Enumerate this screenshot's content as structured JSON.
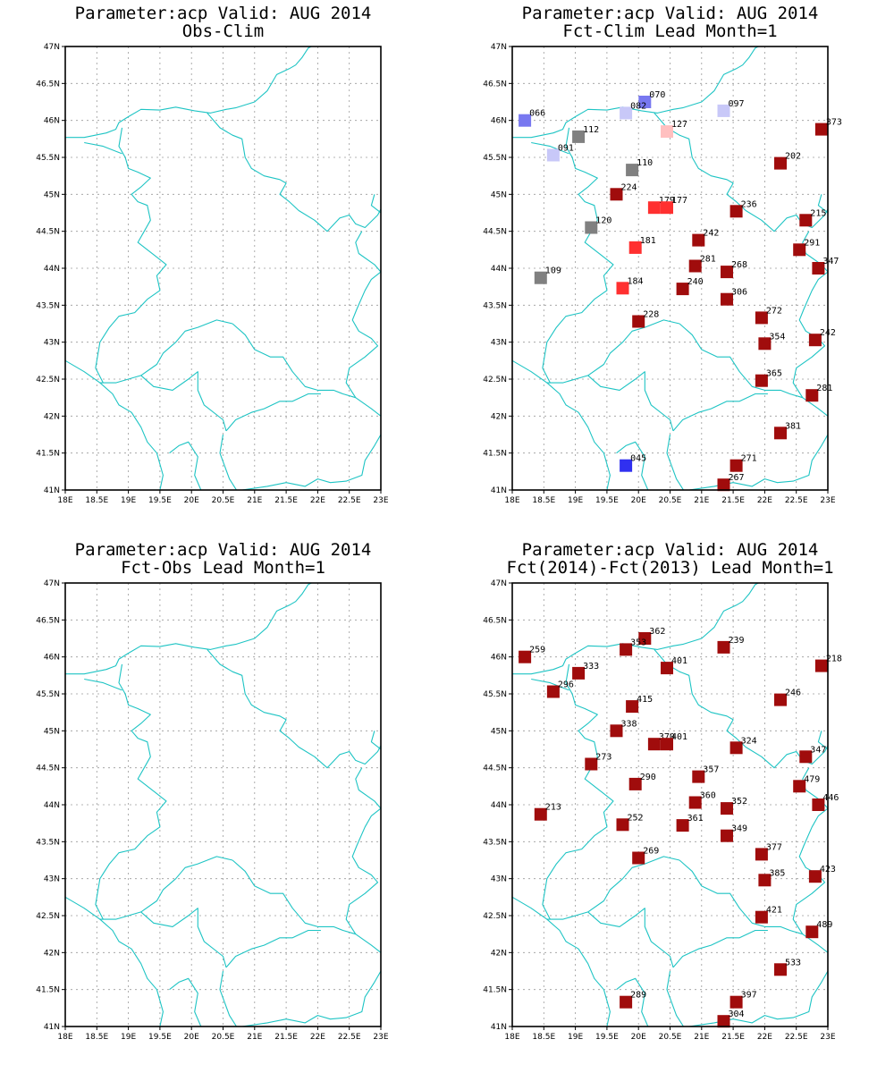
{
  "parameter_title": "Parameter:acp Valid: AUG 2014",
  "lon_ticks": [
    "18E",
    "18.5E",
    "19E",
    "19.5E",
    "20E",
    "20.5E",
    "21E",
    "21.5E",
    "22E",
    "22.5E",
    "23E"
  ],
  "lat_ticks": [
    "47N",
    "46.5N",
    "46N",
    "45.5N",
    "45N",
    "44.5N",
    "44N",
    "43.5N",
    "43N",
    "42.5N",
    "42N",
    "41.5N",
    "41N"
  ],
  "colors": {
    "border": "#1ec4c4",
    "dark_red": "#a00c0c",
    "red": "#ff3030",
    "pink": "#ffc0c0",
    "grey": "#808080",
    "light_blue": "#c8c8f8",
    "mid_blue": "#7878f0",
    "blue": "#3030f0"
  },
  "panels": [
    {
      "id": "obs-clim",
      "title": "Parameter:acp Valid: AUG 2014",
      "subtitle": "Obs-Clim",
      "stations": []
    },
    {
      "id": "fct-clim",
      "title": "Parameter:acp Valid: AUG 2014",
      "subtitle": "Fct-Clim Lead Month=1",
      "stations": [
        {
          "lon": 18.2,
          "lat": 46.0,
          "label": "066",
          "color": "mid_blue"
        },
        {
          "lon": 20.1,
          "lat": 46.25,
          "label": "070",
          "color": "mid_blue"
        },
        {
          "lon": 19.8,
          "lat": 46.1,
          "label": "082",
          "color": "light_blue"
        },
        {
          "lon": 21.35,
          "lat": 46.13,
          "label": "097",
          "color": "light_blue"
        },
        {
          "lon": 22.9,
          "lat": 45.88,
          "label": "373",
          "color": "dark_red"
        },
        {
          "lon": 19.05,
          "lat": 45.78,
          "label": "112",
          "color": "grey"
        },
        {
          "lon": 20.45,
          "lat": 45.85,
          "label": "127",
          "color": "pink"
        },
        {
          "lon": 18.65,
          "lat": 45.53,
          "label": "091",
          "color": "light_blue"
        },
        {
          "lon": 22.25,
          "lat": 45.42,
          "label": "202",
          "color": "dark_red"
        },
        {
          "lon": 19.9,
          "lat": 45.33,
          "label": "110",
          "color": "grey"
        },
        {
          "lon": 19.65,
          "lat": 45.0,
          "label": "224",
          "color": "dark_red"
        },
        {
          "lon": 20.25,
          "lat": 44.82,
          "label": "179",
          "color": "red"
        },
        {
          "lon": 20.45,
          "lat": 44.82,
          "label": "177",
          "color": "red"
        },
        {
          "lon": 21.55,
          "lat": 44.77,
          "label": "236",
          "color": "dark_red"
        },
        {
          "lon": 22.65,
          "lat": 44.65,
          "label": "215",
          "color": "dark_red"
        },
        {
          "lon": 19.25,
          "lat": 44.55,
          "label": "120",
          "color": "grey"
        },
        {
          "lon": 20.95,
          "lat": 44.38,
          "label": "242",
          "color": "dark_red"
        },
        {
          "lon": 19.95,
          "lat": 44.28,
          "label": "181",
          "color": "red"
        },
        {
          "lon": 22.55,
          "lat": 44.25,
          "label": "291",
          "color": "dark_red"
        },
        {
          "lon": 20.9,
          "lat": 44.03,
          "label": "281",
          "color": "dark_red"
        },
        {
          "lon": 21.4,
          "lat": 43.95,
          "label": "268",
          "color": "dark_red"
        },
        {
          "lon": 22.85,
          "lat": 44.0,
          "label": "347",
          "color": "dark_red"
        },
        {
          "lon": 18.45,
          "lat": 43.87,
          "label": "109",
          "color": "grey"
        },
        {
          "lon": 19.75,
          "lat": 43.73,
          "label": "184",
          "color": "red"
        },
        {
          "lon": 20.7,
          "lat": 43.72,
          "label": "240",
          "color": "dark_red"
        },
        {
          "lon": 21.4,
          "lat": 43.58,
          "label": "306",
          "color": "dark_red"
        },
        {
          "lon": 21.95,
          "lat": 43.33,
          "label": "272",
          "color": "dark_red"
        },
        {
          "lon": 20.0,
          "lat": 43.28,
          "label": "228",
          "color": "dark_red"
        },
        {
          "lon": 22.8,
          "lat": 43.03,
          "label": "242",
          "color": "dark_red"
        },
        {
          "lon": 22.0,
          "lat": 42.98,
          "label": "354",
          "color": "dark_red"
        },
        {
          "lon": 21.95,
          "lat": 42.48,
          "label": "365",
          "color": "dark_red"
        },
        {
          "lon": 22.75,
          "lat": 42.28,
          "label": "281",
          "color": "dark_red"
        },
        {
          "lon": 22.25,
          "lat": 41.77,
          "label": "381",
          "color": "dark_red"
        },
        {
          "lon": 19.8,
          "lat": 41.33,
          "label": "045",
          "color": "blue"
        },
        {
          "lon": 21.55,
          "lat": 41.33,
          "label": "271",
          "color": "dark_red"
        },
        {
          "lon": 21.35,
          "lat": 41.07,
          "label": "267",
          "color": "dark_red"
        }
      ]
    },
    {
      "id": "fct-obs",
      "title": "Parameter:acp Valid: AUG 2014",
      "subtitle": "Fct-Obs Lead Month=1",
      "stations": []
    },
    {
      "id": "fct-fct",
      "title": "Parameter:acp Valid: AUG 2014",
      "subtitle": "Fct(2014)-Fct(2013) Lead Month=1",
      "stations": [
        {
          "lon": 18.2,
          "lat": 46.0,
          "label": "259",
          "color": "dark_red"
        },
        {
          "lon": 20.1,
          "lat": 46.25,
          "label": "362",
          "color": "dark_red"
        },
        {
          "lon": 19.8,
          "lat": 46.1,
          "label": "353",
          "color": "dark_red"
        },
        {
          "lon": 21.35,
          "lat": 46.13,
          "label": "239",
          "color": "dark_red"
        },
        {
          "lon": 22.9,
          "lat": 45.88,
          "label": "218",
          "color": "dark_red"
        },
        {
          "lon": 19.05,
          "lat": 45.78,
          "label": "333",
          "color": "dark_red"
        },
        {
          "lon": 20.45,
          "lat": 45.85,
          "label": "401",
          "color": "dark_red"
        },
        {
          "lon": 18.65,
          "lat": 45.53,
          "label": "296",
          "color": "dark_red"
        },
        {
          "lon": 22.25,
          "lat": 45.42,
          "label": "246",
          "color": "dark_red"
        },
        {
          "lon": 19.9,
          "lat": 45.33,
          "label": "415",
          "color": "dark_red"
        },
        {
          "lon": 19.65,
          "lat": 45.0,
          "label": "338",
          "color": "dark_red"
        },
        {
          "lon": 20.25,
          "lat": 44.82,
          "label": "370",
          "color": "dark_red"
        },
        {
          "lon": 20.45,
          "lat": 44.82,
          "label": "401",
          "color": "dark_red"
        },
        {
          "lon": 21.55,
          "lat": 44.77,
          "label": "324",
          "color": "dark_red"
        },
        {
          "lon": 22.65,
          "lat": 44.65,
          "label": "347",
          "color": "dark_red"
        },
        {
          "lon": 19.25,
          "lat": 44.55,
          "label": "273",
          "color": "dark_red"
        },
        {
          "lon": 20.95,
          "lat": 44.38,
          "label": "357",
          "color": "dark_red"
        },
        {
          "lon": 19.95,
          "lat": 44.28,
          "label": "290",
          "color": "dark_red"
        },
        {
          "lon": 22.55,
          "lat": 44.25,
          "label": "479",
          "color": "dark_red"
        },
        {
          "lon": 20.9,
          "lat": 44.03,
          "label": "360",
          "color": "dark_red"
        },
        {
          "lon": 21.4,
          "lat": 43.95,
          "label": "352",
          "color": "dark_red"
        },
        {
          "lon": 22.85,
          "lat": 44.0,
          "label": "446",
          "color": "dark_red"
        },
        {
          "lon": 18.45,
          "lat": 43.87,
          "label": "213",
          "color": "dark_red"
        },
        {
          "lon": 19.75,
          "lat": 43.73,
          "label": "252",
          "color": "dark_red"
        },
        {
          "lon": 20.7,
          "lat": 43.72,
          "label": "361",
          "color": "dark_red"
        },
        {
          "lon": 21.4,
          "lat": 43.58,
          "label": "349",
          "color": "dark_red"
        },
        {
          "lon": 21.95,
          "lat": 43.33,
          "label": "377",
          "color": "dark_red"
        },
        {
          "lon": 20.0,
          "lat": 43.28,
          "label": "269",
          "color": "dark_red"
        },
        {
          "lon": 22.8,
          "lat": 43.03,
          "label": "423",
          "color": "dark_red"
        },
        {
          "lon": 22.0,
          "lat": 42.98,
          "label": "385",
          "color": "dark_red"
        },
        {
          "lon": 21.95,
          "lat": 42.48,
          "label": "421",
          "color": "dark_red"
        },
        {
          "lon": 22.75,
          "lat": 42.28,
          "label": "489",
          "color": "dark_red"
        },
        {
          "lon": 22.25,
          "lat": 41.77,
          "label": "533",
          "color": "dark_red"
        },
        {
          "lon": 19.8,
          "lat": 41.33,
          "label": "289",
          "color": "dark_red"
        },
        {
          "lon": 21.55,
          "lat": 41.33,
          "label": "397",
          "color": "dark_red"
        },
        {
          "lon": 21.35,
          "lat": 41.07,
          "label": "304",
          "color": "dark_red"
        }
      ]
    }
  ]
}
